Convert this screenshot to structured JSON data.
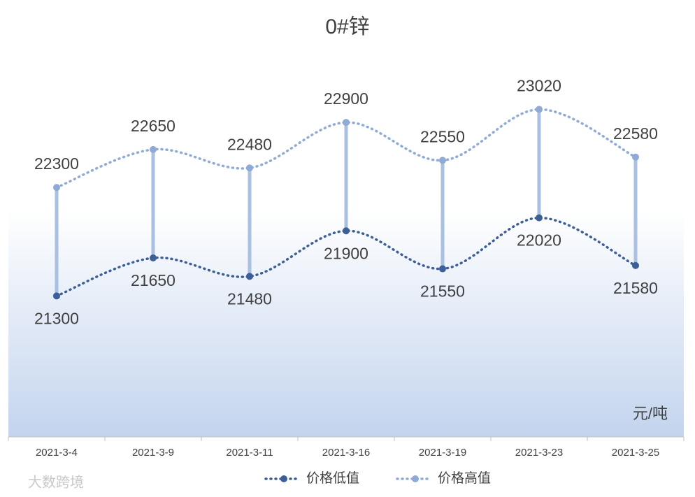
{
  "chart_data": {
    "type": "line",
    "title": "0#锌",
    "unit_label": "元/吨",
    "watermark": "大数跨境",
    "categories": [
      "2021-3-4",
      "2021-3-9",
      "2021-3-11",
      "2021-3-16",
      "2021-3-19",
      "2021-3-23",
      "2021-3-25"
    ],
    "series": [
      {
        "name": "价格低值",
        "color": "#3b5f96",
        "values": [
          21300,
          21650,
          21480,
          21900,
          21550,
          22020,
          21580
        ]
      },
      {
        "name": "价格高值",
        "color": "#8faad6",
        "values": [
          22300,
          22650,
          22480,
          22900,
          22550,
          23020,
          22580
        ]
      }
    ],
    "ylim": [
      20000,
      23500
    ],
    "high_low_lines": true,
    "legend": "bottom"
  }
}
